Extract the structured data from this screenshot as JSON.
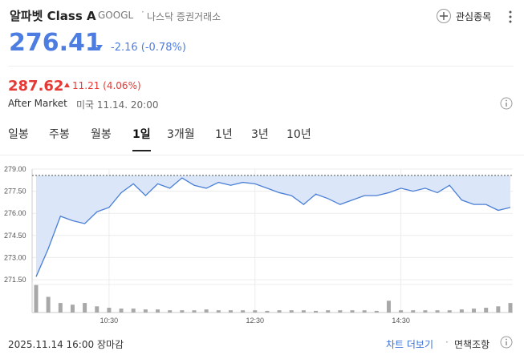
{
  "header": {
    "title": "알파벳 Class A",
    "ticker": "GOOGL",
    "exchange": "나스닥 증권거래소",
    "watch_button": "관심종목"
  },
  "quote": {
    "price": "276.41",
    "change": "-2.16 (-0.78%)"
  },
  "after_market": {
    "price": "287.62",
    "change": "11.21 (4.06%)",
    "label": "After Market",
    "time": "미국 11.14. 20:00"
  },
  "tabs": {
    "items": [
      "일봉",
      "주봉",
      "월봉",
      "1일",
      "3개월",
      "1년",
      "3년",
      "10년"
    ],
    "active": 3
  },
  "chart_data": {
    "type": "area",
    "x": [
      "09:30",
      "09:40",
      "09:50",
      "10:00",
      "10:10",
      "10:20",
      "10:30",
      "10:40",
      "10:50",
      "11:00",
      "11:10",
      "11:20",
      "11:30",
      "11:40",
      "11:50",
      "12:00",
      "12:10",
      "12:20",
      "12:30",
      "12:40",
      "12:50",
      "13:00",
      "13:10",
      "13:20",
      "13:30",
      "13:40",
      "13:50",
      "14:00",
      "14:10",
      "14:20",
      "14:30",
      "14:40",
      "14:50",
      "15:00",
      "15:10",
      "15:20",
      "15:30",
      "15:40",
      "15:50",
      "16:00"
    ],
    "series": [
      {
        "color": "#4a7fd6",
        "fill": "#dbe6f8",
        "values": [
          271.7,
          273.6,
          275.8,
          275.5,
          275.3,
          276.1,
          276.4,
          277.4,
          278.0,
          277.2,
          278.0,
          277.7,
          278.4,
          277.9,
          277.7,
          278.1,
          277.9,
          278.1,
          278.0,
          277.7,
          277.4,
          277.2,
          276.6,
          277.3,
          277.0,
          276.6,
          276.9,
          277.2,
          277.2,
          277.4,
          277.7,
          277.5,
          277.7,
          277.4,
          277.9,
          276.9,
          276.6,
          276.6,
          276.2,
          276.4
        ]
      }
    ],
    "reference_line": 278.57,
    "xlim": [
      "09:30",
      "16:00"
    ],
    "xticks": [
      "10:30",
      "12:30",
      "14:30"
    ],
    "ylim": [
      271.5,
      279
    ],
    "yticks": [
      {
        "value": 271.5,
        "label": "271.50"
      },
      {
        "value": 273,
        "label": "273.00"
      },
      {
        "value": 274.5,
        "label": "274.50"
      },
      {
        "value": 276,
        "label": "276.00"
      },
      {
        "value": 277.5,
        "label": "277.50"
      },
      {
        "value": 279,
        "label": "279.00"
      }
    ],
    "grid": true,
    "volume": {
      "color": "#a8a8a8",
      "ylim": [
        0,
        100
      ],
      "values": [
        98,
        56,
        34,
        28,
        34,
        22,
        17,
        14,
        14,
        11,
        11,
        8,
        8,
        8,
        11,
        8,
        8,
        8,
        8,
        6,
        8,
        8,
        8,
        6,
        8,
        8,
        8,
        8,
        6,
        42,
        8,
        8,
        8,
        8,
        8,
        11,
        14,
        17,
        22,
        34
      ]
    }
  },
  "footer": {
    "status": "2025.11.14 16:00 장마감",
    "more": "차트 더보기",
    "disclaimer": "면책조항"
  }
}
